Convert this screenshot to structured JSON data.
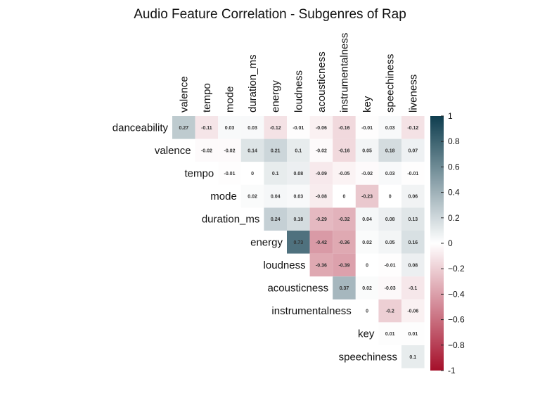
{
  "chart_data": {
    "type": "heatmap",
    "title": "Audio Feature Correlation - Subgenres of Rap",
    "row_labels": [
      "danceability",
      "valence",
      "tempo",
      "mode",
      "duration_ms",
      "energy",
      "loudness",
      "acousticness",
      "instrumentalness",
      "key",
      "speechiness"
    ],
    "col_labels": [
      "valence",
      "tempo",
      "mode",
      "duration_ms",
      "energy",
      "loudness",
      "acousticness",
      "instrumentalness",
      "key",
      "speechiness",
      "liveness"
    ],
    "rows": [
      [
        0.27,
        -0.11,
        0.03,
        0.03,
        -0.12,
        -0.01,
        -0.06,
        -0.16,
        -0.01,
        0.03,
        -0.12
      ],
      [
        null,
        -0.02,
        -0.02,
        0.14,
        0.21,
        0.1,
        -0.02,
        -0.16,
        0.05,
        0.18,
        0.07
      ],
      [
        null,
        null,
        -0.01,
        0,
        0.1,
        0.08,
        -0.09,
        -0.05,
        -0.02,
        0.03,
        -0.01
      ],
      [
        null,
        null,
        null,
        0.02,
        0.04,
        0.03,
        -0.08,
        0,
        -0.23,
        0,
        0.06
      ],
      [
        null,
        null,
        null,
        null,
        0.24,
        0.18,
        -0.29,
        -0.32,
        0.04,
        0.08,
        0.13
      ],
      [
        null,
        null,
        null,
        null,
        null,
        0.73,
        -0.42,
        -0.36,
        0.02,
        0.05,
        0.16
      ],
      [
        null,
        null,
        null,
        null,
        null,
        null,
        -0.36,
        -0.39,
        0,
        -0.01,
        0.08
      ],
      [
        null,
        null,
        null,
        null,
        null,
        null,
        null,
        0.37,
        0.02,
        -0.03,
        -0.1
      ],
      [
        null,
        null,
        null,
        null,
        null,
        null,
        null,
        null,
        0,
        -0.2,
        -0.06
      ],
      [
        null,
        null,
        null,
        null,
        null,
        null,
        null,
        null,
        null,
        0.01,
        0.01
      ],
      [
        null,
        null,
        null,
        null,
        null,
        null,
        null,
        null,
        null,
        null,
        0.1
      ]
    ],
    "colorbar": {
      "range": [
        -1,
        1
      ],
      "ticks": [
        "1",
        "0.8",
        "0.6",
        "0.4",
        "0.2",
        "0",
        "−0.2",
        "−0.4",
        "−0.6",
        "−0.8",
        "-1"
      ],
      "colors": {
        "negative": "#a50f2a",
        "zero": "#ffffff",
        "positive": "#0e3d4e"
      }
    }
  }
}
